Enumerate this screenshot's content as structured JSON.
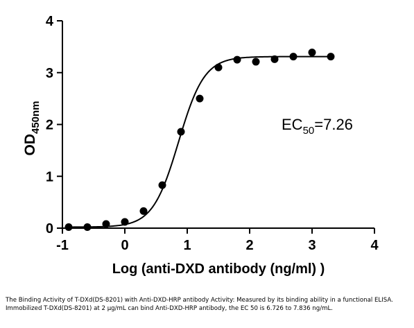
{
  "chart_data": {
    "type": "scatter",
    "xlabel": "Log (anti-DXD antibody (ng/ml) )",
    "ylabel": {
      "main": "OD",
      "subscript": "450nm"
    },
    "xlim": [
      -1,
      4
    ],
    "ylim": [
      0,
      4
    ],
    "x_ticks": [
      "-1",
      "0",
      "1",
      "2",
      "3",
      "4"
    ],
    "y_ticks": [
      "0",
      "1",
      "2",
      "3",
      "4"
    ],
    "grid": false,
    "series": [
      {
        "points": [
          {
            "x": -0.9,
            "y": 0.02
          },
          {
            "x": -0.6,
            "y": 0.02
          },
          {
            "x": -0.3,
            "y": 0.08
          },
          {
            "x": 0.0,
            "y": 0.12
          },
          {
            "x": 0.3,
            "y": 0.33
          },
          {
            "x": 0.6,
            "y": 0.83
          },
          {
            "x": 0.9,
            "y": 1.86
          },
          {
            "x": 1.2,
            "y": 2.5
          },
          {
            "x": 1.5,
            "y": 3.1
          },
          {
            "x": 1.8,
            "y": 3.25
          },
          {
            "x": 2.1,
            "y": 3.21
          },
          {
            "x": 2.4,
            "y": 3.26
          },
          {
            "x": 2.7,
            "y": 3.31
          },
          {
            "x": 3.0,
            "y": 3.39
          },
          {
            "x": 3.3,
            "y": 3.31
          }
        ]
      }
    ],
    "fit_curve": {
      "model": "4PL",
      "bottom": 0.02,
      "top": 3.31,
      "logEC50": 0.861,
      "hill": 2.1,
      "x_range": [
        -0.9,
        3.3
      ]
    },
    "annotation": {
      "prefix": "EC",
      "subscript": "50",
      "suffix": "=7.26"
    }
  },
  "caption": "The Binding Activity of T-DXd(DS-8201) with Anti-DXD-HRP antibody Activity: Measured by its binding ability in a functional ELISA. Immobilized T-DXd(DS-8201) at 2 μg/mL can bind Anti-DXD-HRP antibody, the EC 50  is 6.726 to 7.836 ng/mL."
}
